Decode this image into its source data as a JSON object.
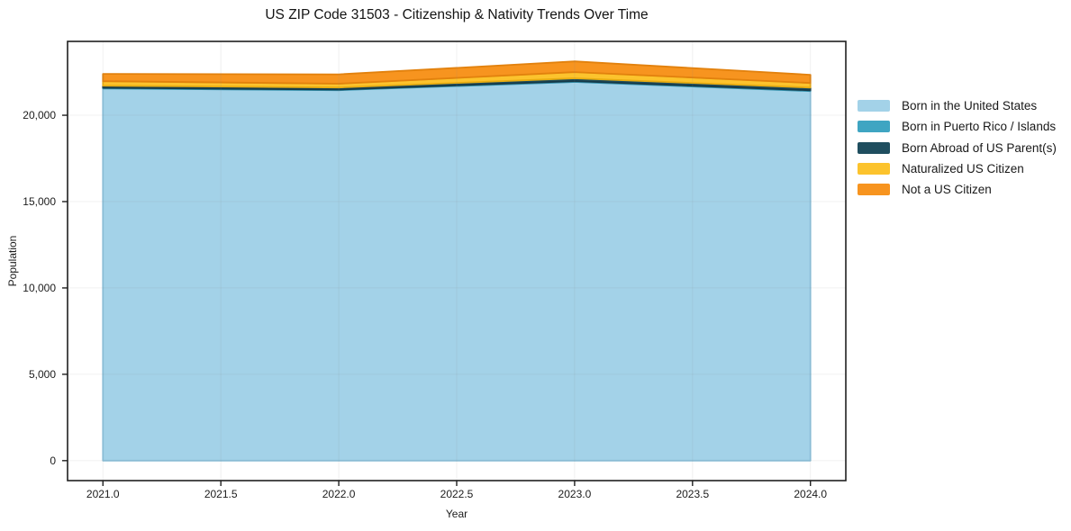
{
  "chart": {
    "title": "US ZIP Code 31503 - Citizenship & Nativity Trends Over Time",
    "xlabel": "Year",
    "ylabel": "Population"
  },
  "chart_data": {
    "type": "area",
    "stacked": true,
    "title": "US ZIP Code 31503 - Citizenship & Nativity Trends Over Time",
    "xlabel": "Year",
    "ylabel": "Population",
    "x": [
      2021,
      2022,
      2023,
      2024
    ],
    "series": [
      {
        "name": "Born in the United States",
        "color": "#a3d2e8",
        "edge": "#8cc2dc",
        "values": [
          21550,
          21450,
          21930,
          21400
        ]
      },
      {
        "name": "Born in Puerto Rico / Islands",
        "color": "#3fa5c2",
        "edge": "#3191ad",
        "values": [
          40,
          40,
          50,
          45
        ]
      },
      {
        "name": "Born Abroad of US Parent(s)",
        "color": "#1f4e5f",
        "edge": "#163a48",
        "values": [
          120,
          120,
          160,
          160
        ]
      },
      {
        "name": "Naturalized US Citizen",
        "color": "#fcc32d",
        "edge": "#e9ad11",
        "values": [
          260,
          215,
          360,
          265
        ]
      },
      {
        "name": "Not a US Citizen",
        "color": "#f7941f",
        "edge": "#e2810d",
        "values": [
          425,
          545,
          620,
          470
        ]
      }
    ],
    "totals": [
      22395,
      22370,
      23120,
      22340
    ],
    "xlim": [
      2020.85,
      2024.15
    ],
    "ylim": [
      -1156,
      24276
    ],
    "x_ticks": [
      {
        "value": 2021.0,
        "label": "2021.0"
      },
      {
        "value": 2021.5,
        "label": "2021.5"
      },
      {
        "value": 2022.0,
        "label": "2022.0"
      },
      {
        "value": 2022.5,
        "label": "2022.5"
      },
      {
        "value": 2023.0,
        "label": "2023.0"
      },
      {
        "value": 2023.5,
        "label": "2023.5"
      },
      {
        "value": 2024.0,
        "label": "2024.0"
      }
    ],
    "y_ticks": [
      {
        "value": 0,
        "label": "0"
      },
      {
        "value": 5000,
        "label": "5,000"
      },
      {
        "value": 10000,
        "label": "10,000"
      },
      {
        "value": 15000,
        "label": "15,000"
      },
      {
        "value": 20000,
        "label": "20,000"
      }
    ],
    "grid": true,
    "grid_color": "#8a8a8a",
    "grid_opacity": 0.13,
    "legend_position": "right",
    "spine_color": "#1f1f1f",
    "background": "#ffffff"
  }
}
